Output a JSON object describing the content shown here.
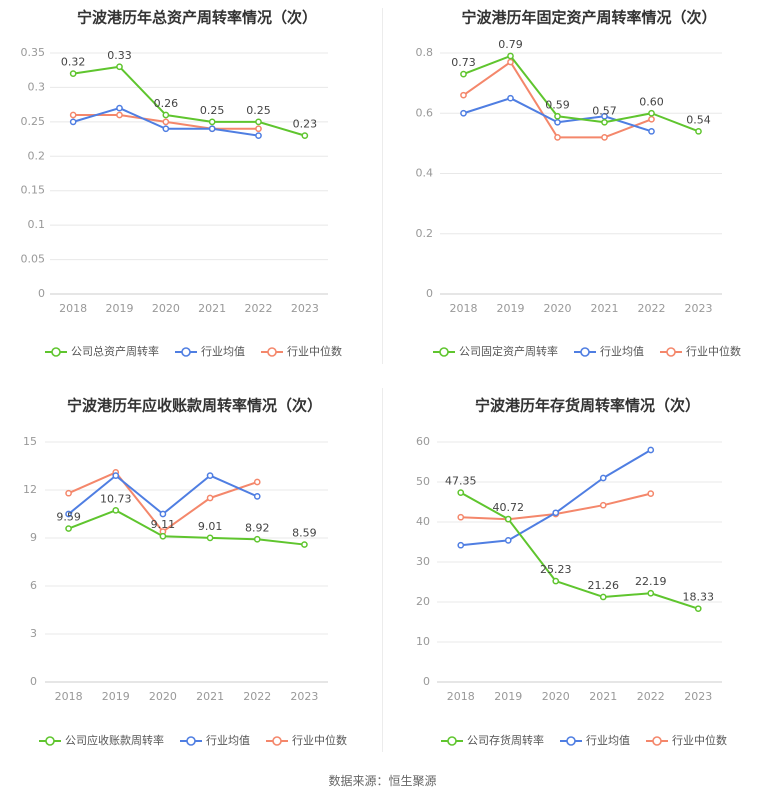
{
  "source": "数据来源：恒生聚源",
  "legend_common": {
    "avg": "行业均值",
    "median": "行业中位数"
  },
  "colors": {
    "company": "#5fc52e",
    "avg": "#4f7ee2",
    "median": "#f4876b",
    "grid": "#e8e8e8",
    "axis": "#999999",
    "title": "#333333"
  },
  "chart_data": [
    {
      "type": "line",
      "title": "宁波港历年总资产周转率情况（次）",
      "x": [
        "2018",
        "2019",
        "2020",
        "2021",
        "2022",
        "2023"
      ],
      "ylim": [
        0,
        0.35
      ],
      "yticks": [
        "0",
        "0.05",
        "0.1",
        "0.15",
        "0.2",
        "0.25",
        "0.3",
        "0.35"
      ],
      "series": [
        {
          "name": "公司总资产周转率",
          "role": "company",
          "values": [
            0.32,
            0.33,
            0.26,
            0.25,
            0.25,
            0.23
          ],
          "labels": [
            "0.32",
            "0.33",
            "0.26",
            "0.25",
            "0.25",
            "0.23"
          ]
        },
        {
          "name": "行业均值",
          "role": "avg",
          "values": [
            0.25,
            0.27,
            0.24,
            0.24,
            0.23,
            null
          ]
        },
        {
          "name": "行业中位数",
          "role": "median",
          "values": [
            0.26,
            0.26,
            0.25,
            0.24,
            0.24,
            null
          ]
        }
      ]
    },
    {
      "type": "line",
      "title": "宁波港历年固定资产周转率情况（次）",
      "x": [
        "2018",
        "2019",
        "2020",
        "2021",
        "2022",
        "2023"
      ],
      "ylim": [
        0,
        0.8
      ],
      "yticks": [
        "0",
        "0.2",
        "0.4",
        "0.6",
        "0.8"
      ],
      "series": [
        {
          "name": "公司固定资产周转率",
          "role": "company",
          "values": [
            0.73,
            0.79,
            0.59,
            0.57,
            0.6,
            0.54
          ],
          "labels": [
            "0.73",
            "0.79",
            "0.59",
            "0.57",
            "0.60",
            "0.54"
          ]
        },
        {
          "name": "行业均值",
          "role": "avg",
          "values": [
            0.6,
            0.65,
            0.57,
            0.59,
            0.54,
            null
          ]
        },
        {
          "name": "行业中位数",
          "role": "median",
          "values": [
            0.66,
            0.77,
            0.52,
            0.52,
            0.58,
            null
          ]
        }
      ]
    },
    {
      "type": "line",
      "title": "宁波港历年应收账款周转率情况（次）",
      "x": [
        "2018",
        "2019",
        "2020",
        "2021",
        "2022",
        "2023"
      ],
      "ylim": [
        0,
        15
      ],
      "yticks": [
        "0",
        "3",
        "6",
        "9",
        "12",
        "15"
      ],
      "series": [
        {
          "name": "公司应收账款周转率",
          "role": "company",
          "values": [
            9.59,
            10.73,
            9.11,
            9.01,
            8.92,
            8.59
          ],
          "labels": [
            "9.59",
            "10.73",
            "9.11",
            "9.01",
            "8.92",
            "8.59"
          ]
        },
        {
          "name": "行业均值",
          "role": "avg",
          "values": [
            10.5,
            12.9,
            10.5,
            12.9,
            11.6,
            null
          ]
        },
        {
          "name": "行业中位数",
          "role": "median",
          "values": [
            11.8,
            13.1,
            9.4,
            11.5,
            12.5,
            null
          ]
        }
      ]
    },
    {
      "type": "line",
      "title": "宁波港历年存货周转率情况（次）",
      "x": [
        "2018",
        "2019",
        "2020",
        "2021",
        "2022",
        "2023"
      ],
      "ylim": [
        0,
        60
      ],
      "yticks": [
        "0",
        "10",
        "20",
        "30",
        "40",
        "50",
        "60"
      ],
      "series": [
        {
          "name": "公司存货周转率",
          "role": "company",
          "values": [
            47.35,
            40.72,
            25.23,
            21.26,
            22.19,
            18.33
          ],
          "labels": [
            "47.35",
            "40.72",
            "25.23",
            "21.26",
            "22.19",
            "18.33"
          ]
        },
        {
          "name": "行业均值",
          "role": "avg",
          "values": [
            34.2,
            35.4,
            42.3,
            51.0,
            58.0,
            null
          ]
        },
        {
          "name": "行业中位数",
          "role": "median",
          "values": [
            41.2,
            40.7,
            42.0,
            44.2,
            47.1,
            null
          ]
        }
      ]
    }
  ]
}
